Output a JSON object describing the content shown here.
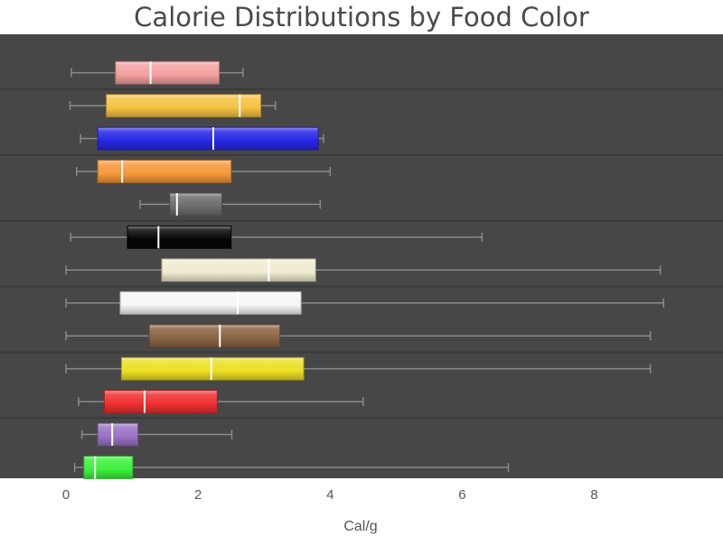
{
  "chart_data": {
    "type": "box",
    "orientation": "horizontal",
    "title": "Calorie Distributions by Food Color",
    "xlabel": "Cal/g",
    "ylabel": "",
    "xlim": [
      -1,
      9.95
    ],
    "xticks": [
      0,
      2,
      4,
      6,
      8
    ],
    "grid": true,
    "legend": "none",
    "series": [
      {
        "color": "#f4a0a0",
        "min": 0.08,
        "q1": 0.75,
        "median": 1.28,
        "q3": 2.32,
        "max": 2.68
      },
      {
        "color": "#f5c243",
        "min": 0.06,
        "q1": 0.61,
        "median": 2.63,
        "q3": 2.95,
        "max": 3.17
      },
      {
        "color": "#2828e6",
        "min": 0.22,
        "q1": 0.48,
        "median": 2.23,
        "q3": 3.82,
        "max": 3.9
      },
      {
        "color": "#f5983a",
        "min": 0.16,
        "q1": 0.48,
        "median": 0.85,
        "q3": 2.5,
        "max": 4.0
      },
      {
        "color": "#6c6c6c",
        "min": 1.12,
        "q1": 1.57,
        "median": 1.68,
        "q3": 2.36,
        "max": 3.85
      },
      {
        "color": "#050505",
        "min": 0.07,
        "q1": 0.93,
        "median": 1.4,
        "q3": 2.5,
        "max": 6.3
      },
      {
        "color": "#f0ecd0",
        "min": 0.0,
        "q1": 1.45,
        "median": 3.07,
        "q3": 3.78,
        "max": 9.0
      },
      {
        "color": "#f6f6f6",
        "min": 0.0,
        "q1": 0.82,
        "median": 2.6,
        "q3": 3.56,
        "max": 9.05
      },
      {
        "color": "#8a6444",
        "min": 0.0,
        "q1": 1.26,
        "median": 2.33,
        "q3": 3.24,
        "max": 8.85
      },
      {
        "color": "#ecdf24",
        "min": 0.0,
        "q1": 0.84,
        "median": 2.2,
        "q3": 3.6,
        "max": 8.85
      },
      {
        "color": "#ee3030",
        "min": 0.19,
        "q1": 0.58,
        "median": 1.19,
        "q3": 2.29,
        "max": 4.5
      },
      {
        "color": "#9a72c4",
        "min": 0.24,
        "q1": 0.48,
        "median": 0.7,
        "q3": 1.09,
        "max": 2.51
      },
      {
        "color": "#3cf03c",
        "min": 0.13,
        "q1": 0.27,
        "median": 0.44,
        "q3": 1.01,
        "max": 6.7
      }
    ]
  }
}
